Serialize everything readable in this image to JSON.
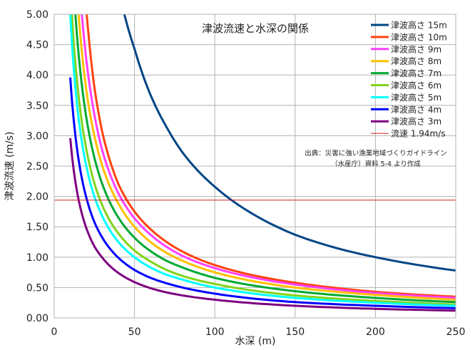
{
  "chart_data": {
    "type": "line",
    "title": "津波流速と水深の関係",
    "xlabel": "水深 (m)",
    "ylabel": "津波流速 (m/s)",
    "xlim": [
      0,
      250
    ],
    "ylim": [
      0,
      5
    ],
    "xticks": [
      0,
      50,
      100,
      150,
      200,
      250
    ],
    "xtick_labels": [
      "0",
      "50",
      "100",
      "150",
      "200",
      "250"
    ],
    "yticks": [
      0,
      0.5,
      1,
      1.5,
      2,
      2.5,
      3,
      3.5,
      4,
      4.5,
      5
    ],
    "ytick_labels": [
      "0.00",
      "0.50",
      "1.00",
      "1.50",
      "2.00",
      "2.50",
      "3.00",
      "3.50",
      "4.00",
      "4.50",
      "5.00"
    ],
    "grid": true,
    "legend_position": "top-right",
    "series": [
      {
        "name": "津波高さ 15m",
        "color": "#004586",
        "values": [
          [
            43,
            5.07
          ],
          [
            50,
            4.43
          ],
          [
            60,
            3.67
          ],
          [
            70,
            3.14
          ],
          [
            80,
            2.72
          ],
          [
            100,
            2.16
          ],
          [
            120,
            1.77
          ],
          [
            150,
            1.37
          ],
          [
            180,
            1.12
          ],
          [
            200,
            1.0
          ],
          [
            250,
            0.78
          ]
        ]
      },
      {
        "name": "津波高さ 10m",
        "color": "#ff420e",
        "values": [
          [
            20,
            5.07
          ],
          [
            25,
            3.8
          ],
          [
            30,
            3.05
          ],
          [
            40,
            2.2
          ],
          [
            50,
            1.75
          ],
          [
            60,
            1.46
          ],
          [
            70,
            1.25
          ],
          [
            80,
            1.09
          ],
          [
            100,
            0.87
          ],
          [
            150,
            0.58
          ],
          [
            200,
            0.43
          ],
          [
            250,
            0.35
          ]
        ]
      },
      {
        "name": "津波高さ 9m",
        "color": "#ff40ff",
        "values": [
          [
            17,
            5.07
          ],
          [
            20,
            4.25
          ],
          [
            25,
            3.35
          ],
          [
            30,
            2.75
          ],
          [
            40,
            2.05
          ],
          [
            50,
            1.64
          ],
          [
            60,
            1.37
          ],
          [
            70,
            1.17
          ],
          [
            80,
            1.02
          ],
          [
            100,
            0.82
          ],
          [
            150,
            0.55
          ],
          [
            200,
            0.41
          ],
          [
            250,
            0.33
          ]
        ]
      },
      {
        "name": "津波高さ 8m",
        "color": "#ffc000",
        "values": [
          [
            15,
            5.07
          ],
          [
            20,
            3.75
          ],
          [
            25,
            3.0
          ],
          [
            30,
            2.5
          ],
          [
            40,
            1.88
          ],
          [
            50,
            1.5
          ],
          [
            60,
            1.25
          ],
          [
            70,
            1.07
          ],
          [
            80,
            0.94
          ],
          [
            100,
            0.75
          ],
          [
            150,
            0.5
          ],
          [
            200,
            0.38
          ],
          [
            250,
            0.3
          ]
        ]
      },
      {
        "name": "津波高さ 7m",
        "color": "#00a933",
        "values": [
          [
            13,
            5.07
          ],
          [
            15,
            4.4
          ],
          [
            20,
            3.3
          ],
          [
            25,
            2.64
          ],
          [
            30,
            2.2
          ],
          [
            40,
            1.65
          ],
          [
            50,
            1.32
          ],
          [
            60,
            1.1
          ],
          [
            70,
            0.94
          ],
          [
            80,
            0.83
          ],
          [
            100,
            0.66
          ],
          [
            150,
            0.44
          ],
          [
            200,
            0.33
          ],
          [
            250,
            0.26
          ]
        ]
      },
      {
        "name": "津波高さ 6m",
        "color": "#81d41a",
        "values": [
          [
            11,
            5.0
          ],
          [
            15,
            3.7
          ],
          [
            20,
            2.78
          ],
          [
            25,
            2.22
          ],
          [
            30,
            1.85
          ],
          [
            40,
            1.39
          ],
          [
            50,
            1.11
          ],
          [
            60,
            0.93
          ],
          [
            70,
            0.79
          ],
          [
            80,
            0.69
          ],
          [
            100,
            0.56
          ],
          [
            150,
            0.37
          ],
          [
            200,
            0.28
          ],
          [
            250,
            0.22
          ]
        ]
      },
      {
        "name": "津波高さ 5m",
        "color": "#00ffff",
        "values": [
          [
            10,
            5.0
          ],
          [
            15,
            3.33
          ],
          [
            20,
            2.5
          ],
          [
            25,
            2.0
          ],
          [
            30,
            1.67
          ],
          [
            40,
            1.25
          ],
          [
            50,
            1.0
          ],
          [
            60,
            0.83
          ],
          [
            70,
            0.71
          ],
          [
            80,
            0.63
          ],
          [
            100,
            0.5
          ],
          [
            150,
            0.33
          ],
          [
            200,
            0.25
          ],
          [
            250,
            0.2
          ]
        ]
      },
      {
        "name": "津波高さ 4m",
        "color": "#0000ff",
        "values": [
          [
            10,
            3.96
          ],
          [
            15,
            2.64
          ],
          [
            20,
            1.98
          ],
          [
            25,
            1.58
          ],
          [
            30,
            1.32
          ],
          [
            40,
            0.99
          ],
          [
            50,
            0.79
          ],
          [
            60,
            0.66
          ],
          [
            70,
            0.57
          ],
          [
            80,
            0.5
          ],
          [
            100,
            0.4
          ],
          [
            150,
            0.26
          ],
          [
            200,
            0.2
          ],
          [
            250,
            0.16
          ]
        ]
      },
      {
        "name": "津波高さ 3m",
        "color": "#7e0080",
        "values": [
          [
            10,
            2.96
          ],
          [
            15,
            1.97
          ],
          [
            20,
            1.48
          ],
          [
            25,
            1.18
          ],
          [
            30,
            0.99
          ],
          [
            40,
            0.74
          ],
          [
            50,
            0.59
          ],
          [
            60,
            0.49
          ],
          [
            70,
            0.42
          ],
          [
            80,
            0.37
          ],
          [
            100,
            0.3
          ],
          [
            150,
            0.2
          ],
          [
            200,
            0.15
          ],
          [
            250,
            0.12
          ]
        ]
      },
      {
        "name": "流速 1.94m/s",
        "color": "#c9211e",
        "thin": true,
        "values": [
          [
            0,
            1.94
          ],
          [
            250,
            1.94
          ]
        ]
      }
    ],
    "source_note_lines": [
      "出典：災害に強い漁業地域づくりガイドライン",
      "（水産庁）資料 5-4 より作成"
    ]
  }
}
